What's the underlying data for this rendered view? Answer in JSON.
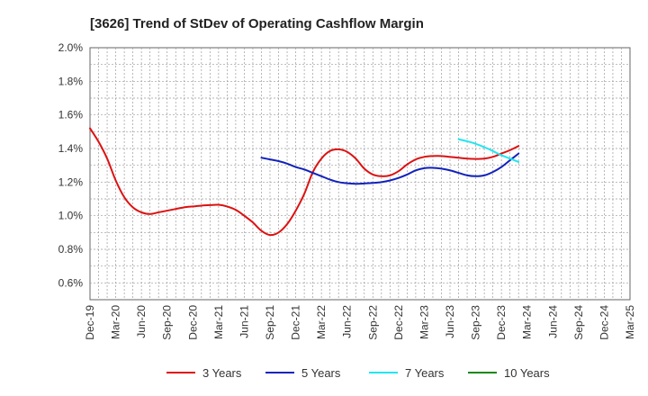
{
  "chart_data": {
    "type": "line",
    "title": "[3626]  Trend of StDev of Operating Cashflow Margin",
    "xlabel": "",
    "ylabel": "",
    "x_ticks": [
      "Dec-19",
      "Mar-20",
      "Jun-20",
      "Sep-20",
      "Dec-20",
      "Mar-21",
      "Jun-21",
      "Sep-21",
      "Dec-21",
      "Mar-22",
      "Jun-22",
      "Sep-22",
      "Dec-22",
      "Mar-23",
      "Jun-23",
      "Sep-23",
      "Dec-23",
      "Mar-24",
      "Jun-24",
      "Sep-24",
      "Dec-24",
      "Mar-25"
    ],
    "y_ticks": [
      "0.6%",
      "0.8%",
      "1.0%",
      "1.2%",
      "1.4%",
      "1.6%",
      "1.8%",
      "2.0%"
    ],
    "ylim": [
      0.5,
      2.0
    ],
    "grid": true,
    "legend_position": "bottom",
    "series": [
      {
        "name": "3 Years",
        "color": "#dd1111",
        "points": [
          [
            "2019-12",
            1.52
          ],
          [
            "2020-01",
            1.44
          ],
          [
            "2020-02",
            1.34
          ],
          [
            "2020-03",
            1.21
          ],
          [
            "2020-04",
            1.11
          ],
          [
            "2020-05",
            1.05
          ],
          [
            "2020-06",
            1.02
          ],
          [
            "2020-07",
            1.01
          ],
          [
            "2020-08",
            1.02
          ],
          [
            "2020-09",
            1.03
          ],
          [
            "2020-10",
            1.04
          ],
          [
            "2020-11",
            1.05
          ],
          [
            "2020-12",
            1.055
          ],
          [
            "2021-01",
            1.06
          ],
          [
            "2021-02",
            1.063
          ],
          [
            "2021-03",
            1.065
          ],
          [
            "2021-04",
            1.055
          ],
          [
            "2021-05",
            1.035
          ],
          [
            "2021-06",
            1.0
          ],
          [
            "2021-07",
            0.96
          ],
          [
            "2021-08",
            0.91
          ],
          [
            "2021-09",
            0.885
          ],
          [
            "2021-10",
            0.9
          ],
          [
            "2021-11",
            0.95
          ],
          [
            "2021-12",
            1.03
          ],
          [
            "2022-01",
            1.13
          ],
          [
            "2022-02",
            1.26
          ],
          [
            "2022-03",
            1.34
          ],
          [
            "2022-04",
            1.385
          ],
          [
            "2022-05",
            1.395
          ],
          [
            "2022-06",
            1.38
          ],
          [
            "2022-07",
            1.34
          ],
          [
            "2022-08",
            1.28
          ],
          [
            "2022-09",
            1.245
          ],
          [
            "2022-10",
            1.235
          ],
          [
            "2022-11",
            1.24
          ],
          [
            "2022-12",
            1.265
          ],
          [
            "2023-01",
            1.305
          ],
          [
            "2023-02",
            1.335
          ],
          [
            "2023-03",
            1.35
          ],
          [
            "2023-04",
            1.355
          ],
          [
            "2023-05",
            1.355
          ],
          [
            "2023-06",
            1.35
          ],
          [
            "2023-07",
            1.345
          ],
          [
            "2023-08",
            1.34
          ],
          [
            "2023-09",
            1.338
          ],
          [
            "2023-10",
            1.34
          ],
          [
            "2023-11",
            1.35
          ],
          [
            "2023-12",
            1.37
          ],
          [
            "2024-01",
            1.39
          ],
          [
            "2024-02",
            1.415
          ]
        ]
      },
      {
        "name": "5 Years",
        "color": "#1122bb",
        "points": [
          [
            "2021-08",
            1.345
          ],
          [
            "2021-09",
            1.335
          ],
          [
            "2021-10",
            1.325
          ],
          [
            "2021-11",
            1.31
          ],
          [
            "2021-12",
            1.29
          ],
          [
            "2022-01",
            1.275
          ],
          [
            "2022-02",
            1.255
          ],
          [
            "2022-03",
            1.235
          ],
          [
            "2022-04",
            1.215
          ],
          [
            "2022-05",
            1.2
          ],
          [
            "2022-06",
            1.193
          ],
          [
            "2022-07",
            1.19
          ],
          [
            "2022-08",
            1.192
          ],
          [
            "2022-09",
            1.195
          ],
          [
            "2022-10",
            1.2
          ],
          [
            "2022-11",
            1.21
          ],
          [
            "2022-12",
            1.225
          ],
          [
            "2023-01",
            1.245
          ],
          [
            "2023-02",
            1.27
          ],
          [
            "2023-03",
            1.283
          ],
          [
            "2023-04",
            1.285
          ],
          [
            "2023-05",
            1.28
          ],
          [
            "2023-06",
            1.27
          ],
          [
            "2023-07",
            1.255
          ],
          [
            "2023-08",
            1.24
          ],
          [
            "2023-09",
            1.235
          ],
          [
            "2023-10",
            1.24
          ],
          [
            "2023-11",
            1.26
          ],
          [
            "2023-12",
            1.29
          ],
          [
            "2024-01",
            1.33
          ],
          [
            "2024-02",
            1.37
          ]
        ]
      },
      {
        "name": "7 Years",
        "color": "#22e5ee",
        "points": [
          [
            "2023-07",
            1.455
          ],
          [
            "2023-08",
            1.443
          ],
          [
            "2023-09",
            1.428
          ],
          [
            "2023-10",
            1.408
          ],
          [
            "2023-11",
            1.385
          ],
          [
            "2023-12",
            1.36
          ],
          [
            "2024-01",
            1.34
          ],
          [
            "2024-02",
            1.32
          ]
        ]
      },
      {
        "name": "10 Years",
        "color": "#118811",
        "points": []
      }
    ]
  }
}
